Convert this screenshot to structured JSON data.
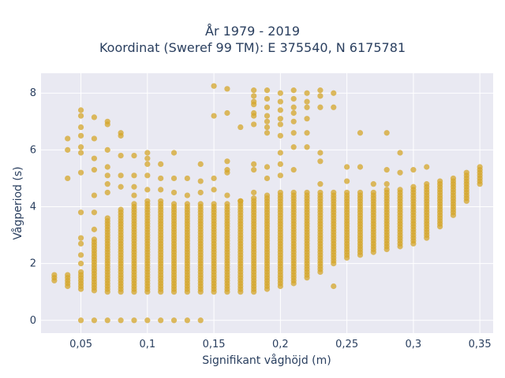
{
  "chart_data": {
    "type": "scatter",
    "title": [
      "År 1979 - 2019",
      "Koordinat (Sweref 99 TM): E 375540, N 6175781"
    ],
    "xlabel": "Signifikant våghöjd (m)",
    "ylabel": "Vågperiod (s)",
    "xlim": [
      0.02,
      0.36
    ],
    "ylim": [
      -0.45,
      8.7
    ],
    "x_ticks": [
      0.05,
      0.1,
      0.15,
      0.2,
      0.25,
      0.3,
      0.35
    ],
    "x_tick_labels": [
      "0,05",
      "0,1",
      "0,15",
      "0,2",
      "0,25",
      "0,3",
      "0,35"
    ],
    "y_ticks": [
      0,
      2,
      4,
      6,
      8
    ],
    "y_tick_labels": [
      "0",
      "2",
      "4",
      "6",
      "8"
    ],
    "grid": true,
    "colors": {
      "marker": "#d4a52a",
      "plot_bg": "#e9e9f2",
      "grid": "#ffffff"
    },
    "columns": [
      {
        "x": 0.03,
        "ymin": 1.4,
        "ymax": 1.6
      },
      {
        "x": 0.04,
        "ymin": 1.2,
        "ymax": 1.6
      },
      {
        "x": 0.05,
        "ymin": 1.1,
        "ymax": 1.7
      },
      {
        "x": 0.06,
        "ymin": 1.05,
        "ymax": 2.9
      },
      {
        "x": 0.07,
        "ymin": 1.0,
        "ymax": 3.6
      },
      {
        "x": 0.08,
        "ymin": 1.0,
        "ymax": 3.9
      },
      {
        "x": 0.09,
        "ymin": 1.0,
        "ymax": 4.1
      },
      {
        "x": 0.1,
        "ymin": 1.0,
        "ymax": 4.2
      },
      {
        "x": 0.11,
        "ymin": 1.0,
        "ymax": 4.2
      },
      {
        "x": 0.12,
        "ymin": 1.0,
        "ymax": 4.1
      },
      {
        "x": 0.13,
        "ymin": 1.0,
        "ymax": 4.1
      },
      {
        "x": 0.14,
        "ymin": 1.0,
        "ymax": 4.1
      },
      {
        "x": 0.15,
        "ymin": 1.0,
        "ymax": 4.1
      },
      {
        "x": 0.16,
        "ymin": 1.0,
        "ymax": 4.1
      },
      {
        "x": 0.17,
        "ymin": 1.0,
        "ymax": 4.2
      },
      {
        "x": 0.18,
        "ymin": 1.0,
        "ymax": 4.3
      },
      {
        "x": 0.19,
        "ymin": 1.1,
        "ymax": 4.4
      },
      {
        "x": 0.2,
        "ymin": 1.2,
        "ymax": 4.5
      },
      {
        "x": 0.21,
        "ymin": 1.3,
        "ymax": 4.5
      },
      {
        "x": 0.22,
        "ymin": 1.5,
        "ymax": 4.5
      },
      {
        "x": 0.23,
        "ymin": 1.7,
        "ymax": 4.5
      },
      {
        "x": 0.24,
        "ymin": 2.0,
        "ymax": 4.5
      },
      {
        "x": 0.25,
        "ymin": 2.2,
        "ymax": 4.5
      },
      {
        "x": 0.26,
        "ymin": 2.3,
        "ymax": 4.5
      },
      {
        "x": 0.27,
        "ymin": 2.4,
        "ymax": 4.5
      },
      {
        "x": 0.28,
        "ymin": 2.5,
        "ymax": 4.6
      },
      {
        "x": 0.29,
        "ymin": 2.6,
        "ymax": 4.6
      },
      {
        "x": 0.3,
        "ymin": 2.7,
        "ymax": 4.7
      },
      {
        "x": 0.31,
        "ymin": 2.9,
        "ymax": 4.8
      },
      {
        "x": 0.32,
        "ymin": 3.3,
        "ymax": 4.9
      },
      {
        "x": 0.33,
        "ymin": 3.7,
        "ymax": 5.0
      },
      {
        "x": 0.34,
        "ymin": 4.2,
        "ymax": 5.2
      },
      {
        "x": 0.35,
        "ymin": 4.8,
        "ymax": 5.4
      }
    ],
    "outliers": [
      [
        0.05,
        0
      ],
      [
        0.06,
        0
      ],
      [
        0.07,
        0
      ],
      [
        0.08,
        0
      ],
      [
        0.09,
        0
      ],
      [
        0.1,
        0
      ],
      [
        0.11,
        0
      ],
      [
        0.12,
        0
      ],
      [
        0.13,
        0
      ],
      [
        0.14,
        0
      ],
      [
        0.05,
        7.4
      ],
      [
        0.05,
        7.2
      ],
      [
        0.05,
        6.8
      ],
      [
        0.05,
        6.5
      ],
      [
        0.05,
        6.1
      ],
      [
        0.05,
        5.9
      ],
      [
        0.05,
        5.2
      ],
      [
        0.05,
        3.8
      ],
      [
        0.05,
        2.9
      ],
      [
        0.05,
        2.7
      ],
      [
        0.05,
        2.3
      ],
      [
        0.05,
        2.0
      ],
      [
        0.04,
        6.4
      ],
      [
        0.04,
        6.0
      ],
      [
        0.04,
        5.0
      ],
      [
        0.06,
        7.15
      ],
      [
        0.06,
        6.4
      ],
      [
        0.06,
        5.7
      ],
      [
        0.06,
        5.3
      ],
      [
        0.06,
        4.4
      ],
      [
        0.06,
        3.8
      ],
      [
        0.06,
        3.2
      ],
      [
        0.07,
        7.0
      ],
      [
        0.07,
        6.9
      ],
      [
        0.07,
        6.0
      ],
      [
        0.07,
        5.4
      ],
      [
        0.07,
        5.1
      ],
      [
        0.07,
        4.8
      ],
      [
        0.07,
        4.5
      ],
      [
        0.08,
        6.6
      ],
      [
        0.08,
        6.5
      ],
      [
        0.08,
        5.8
      ],
      [
        0.08,
        5.1
      ],
      [
        0.08,
        4.7
      ],
      [
        0.09,
        5.8
      ],
      [
        0.09,
        5.1
      ],
      [
        0.09,
        4.7
      ],
      [
        0.09,
        4.4
      ],
      [
        0.1,
        5.9
      ],
      [
        0.1,
        5.7
      ],
      [
        0.1,
        5.5
      ],
      [
        0.1,
        5.1
      ],
      [
        0.1,
        4.6
      ],
      [
        0.11,
        5.5
      ],
      [
        0.11,
        5.0
      ],
      [
        0.11,
        4.6
      ],
      [
        0.12,
        5.9
      ],
      [
        0.12,
        5.0
      ],
      [
        0.12,
        4.5
      ],
      [
        0.13,
        5.0
      ],
      [
        0.13,
        4.4
      ],
      [
        0.14,
        5.5
      ],
      [
        0.14,
        4.9
      ],
      [
        0.14,
        4.5
      ],
      [
        0.15,
        8.25
      ],
      [
        0.15,
        7.2
      ],
      [
        0.15,
        5.0
      ],
      [
        0.15,
        4.6
      ],
      [
        0.16,
        8.15
      ],
      [
        0.16,
        7.3
      ],
      [
        0.16,
        5.6
      ],
      [
        0.16,
        5.3
      ],
      [
        0.16,
        5.2
      ],
      [
        0.16,
        4.4
      ],
      [
        0.17,
        6.8
      ],
      [
        0.17,
        4.2
      ],
      [
        0.18,
        8.1
      ],
      [
        0.18,
        7.9
      ],
      [
        0.18,
        7.7
      ],
      [
        0.18,
        7.6
      ],
      [
        0.18,
        7.3
      ],
      [
        0.18,
        7.2
      ],
      [
        0.18,
        6.9
      ],
      [
        0.18,
        5.5
      ],
      [
        0.18,
        5.3
      ],
      [
        0.18,
        4.5
      ],
      [
        0.19,
        8.1
      ],
      [
        0.19,
        7.8
      ],
      [
        0.19,
        7.5
      ],
      [
        0.19,
        7.2
      ],
      [
        0.19,
        7.0
      ],
      [
        0.19,
        6.8
      ],
      [
        0.19,
        6.6
      ],
      [
        0.19,
        5.4
      ],
      [
        0.19,
        5.0
      ],
      [
        0.2,
        8.0
      ],
      [
        0.2,
        7.7
      ],
      [
        0.2,
        7.4
      ],
      [
        0.2,
        7.1
      ],
      [
        0.2,
        6.9
      ],
      [
        0.2,
        6.5
      ],
      [
        0.2,
        5.9
      ],
      [
        0.2,
        5.5
      ],
      [
        0.2,
        5.1
      ],
      [
        0.21,
        8.1
      ],
      [
        0.21,
        7.8
      ],
      [
        0.21,
        7.5
      ],
      [
        0.21,
        7.3
      ],
      [
        0.21,
        7.0
      ],
      [
        0.21,
        6.6
      ],
      [
        0.21,
        6.1
      ],
      [
        0.21,
        5.3
      ],
      [
        0.22,
        8.0
      ],
      [
        0.22,
        7.7
      ],
      [
        0.22,
        7.5
      ],
      [
        0.22,
        7.1
      ],
      [
        0.22,
        6.6
      ],
      [
        0.22,
        6.1
      ],
      [
        0.23,
        8.1
      ],
      [
        0.23,
        7.9
      ],
      [
        0.23,
        7.5
      ],
      [
        0.23,
        5.9
      ],
      [
        0.23,
        5.6
      ],
      [
        0.23,
        4.8
      ],
      [
        0.24,
        8.0
      ],
      [
        0.24,
        7.5
      ],
      [
        0.24,
        1.2
      ],
      [
        0.25,
        5.4
      ],
      [
        0.25,
        4.9
      ],
      [
        0.26,
        6.6
      ],
      [
        0.26,
        5.4
      ],
      [
        0.27,
        4.8
      ],
      [
        0.28,
        6.6
      ],
      [
        0.28,
        5.3
      ],
      [
        0.28,
        4.8
      ],
      [
        0.29,
        5.9
      ],
      [
        0.29,
        5.2
      ],
      [
        0.3,
        5.3
      ],
      [
        0.31,
        5.4
      ]
    ]
  }
}
